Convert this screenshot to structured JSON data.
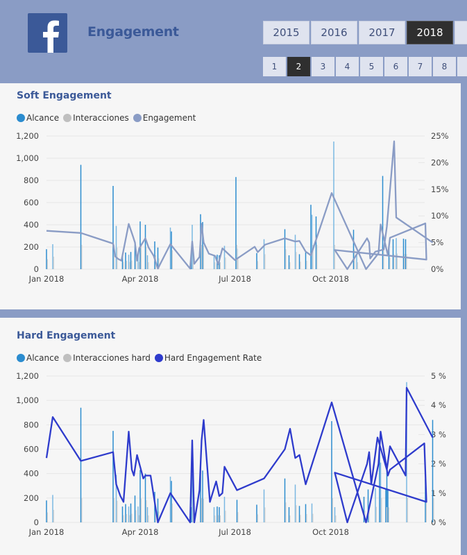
{
  "header": {
    "title": "Engagement",
    "logo_icon": "facebook-icon",
    "years": [
      {
        "label": "2015",
        "active": false
      },
      {
        "label": "2016",
        "active": false
      },
      {
        "label": "2017",
        "active": false
      },
      {
        "label": "2018",
        "active": true
      }
    ],
    "pages": [
      {
        "label": "1",
        "active": false
      },
      {
        "label": "2",
        "active": true
      },
      {
        "label": "3",
        "active": false
      },
      {
        "label": "4",
        "active": false
      },
      {
        "label": "5",
        "active": false
      },
      {
        "label": "6",
        "active": false
      },
      {
        "label": "7",
        "active": false
      },
      {
        "label": "8",
        "active": false
      }
    ]
  },
  "colors": {
    "alcance": "#2b8ccf",
    "interacciones": "#bfbfbf",
    "engagement": "#8a9cc5",
    "hard_rate": "#2e3bcc",
    "brand": "#3b5998"
  },
  "chart_data": [
    {
      "type": "bar+line",
      "title": "Soft Engagement",
      "legend": [
        "Alcance",
        "Interacciones",
        "Engagement"
      ],
      "legend_position": "top-left",
      "x_ticks": [
        "Jan 2018",
        "Apr 2018",
        "Jul 2018",
        "Oct 2018"
      ],
      "y_ticks": [
        "0",
        "200",
        "400",
        "600",
        "800",
        "1,000",
        "1,200"
      ],
      "y2_ticks": [
        "0%",
        "5%",
        "10%",
        "15%",
        "20%",
        "25%"
      ],
      "ylim": [
        0,
        1200
      ],
      "y2lim": [
        0,
        25
      ],
      "bars": [
        {
          "day": 1,
          "v": 180
        },
        {
          "day": 7,
          "v": 225
        },
        {
          "day": 34,
          "v": 940
        },
        {
          "day": 65,
          "v": 750
        },
        {
          "day": 68,
          "v": 390
        },
        {
          "day": 74,
          "v": 130
        },
        {
          "day": 77,
          "v": 150
        },
        {
          "day": 80,
          "v": 130
        },
        {
          "day": 82,
          "v": 155
        },
        {
          "day": 86,
          "v": 220
        },
        {
          "day": 89,
          "v": 130
        },
        {
          "day": 91,
          "v": 430
        },
        {
          "day": 96,
          "v": 400
        },
        {
          "day": 98,
          "v": 125
        },
        {
          "day": 105,
          "v": 250
        },
        {
          "day": 108,
          "v": 195
        },
        {
          "day": 120,
          "v": 375
        },
        {
          "day": 121,
          "v": 340
        },
        {
          "day": 140,
          "v": 125
        },
        {
          "day": 141,
          "v": 400
        },
        {
          "day": 149,
          "v": 495
        },
        {
          "day": 151,
          "v": 425
        },
        {
          "day": 162,
          "v": 125
        },
        {
          "day": 165,
          "v": 130
        },
        {
          "day": 167,
          "v": 125
        },
        {
          "day": 172,
          "v": 210
        },
        {
          "day": 184,
          "v": 185
        },
        {
          "day": 203,
          "v": 145
        },
        {
          "day": 210,
          "v": 270
        },
        {
          "day": 230,
          "v": 360
        },
        {
          "day": 234,
          "v": 125
        },
        {
          "day": 240,
          "v": 310
        },
        {
          "day": 244,
          "v": 135
        },
        {
          "day": 250,
          "v": 150
        },
        {
          "day": 256,
          "v": 155
        },
        {
          "day": 183,
          "v": 830
        },
        {
          "day": 255,
          "v": 580
        },
        {
          "day": 256,
          "v": 490
        },
        {
          "day": 260,
          "v": 475
        },
        {
          "day": 296,
          "v": 355
        },
        {
          "day": 299,
          "v": 125
        },
        {
          "day": 330,
          "v": 210
        },
        {
          "day": 334,
          "v": 270
        },
        {
          "day": 337,
          "v": 280
        },
        {
          "day": 344,
          "v": 275
        },
        {
          "day": 346,
          "v": 270
        },
        {
          "day": 367,
          "v": 1150
        },
        {
          "day": 414,
          "v": 840
        }
      ],
      "engagement_line": [
        {
          "day": 1,
          "v": 7.2
        },
        {
          "day": 34,
          "v": 6.8
        },
        {
          "day": 65,
          "v": 4.8
        },
        {
          "day": 67,
          "v": 2.4
        },
        {
          "day": 70,
          "v": 1.9
        },
        {
          "day": 73,
          "v": 1.6
        },
        {
          "day": 80,
          "v": 8.5
        },
        {
          "day": 84,
          "v": 6.2
        },
        {
          "day": 86,
          "v": 5.0
        },
        {
          "day": 88,
          "v": 1.6
        },
        {
          "day": 90,
          "v": 3.9
        },
        {
          "day": 96,
          "v": 5.8
        },
        {
          "day": 99,
          "v": 4.1
        },
        {
          "day": 104,
          "v": 2.5
        },
        {
          "day": 108,
          "v": 0.1
        },
        {
          "day": 120,
          "v": 4.7
        },
        {
          "day": 139,
          "v": 0.1
        },
        {
          "day": 141,
          "v": 5.2
        },
        {
          "day": 143,
          "v": 1.0
        },
        {
          "day": 148,
          "v": 2.3
        },
        {
          "day": 150,
          "v": 8.5
        },
        {
          "day": 152,
          "v": 5.0
        },
        {
          "day": 157,
          "v": 2.9
        },
        {
          "day": 163,
          "v": 2.5
        },
        {
          "day": 166,
          "v": 0.9
        },
        {
          "day": 170,
          "v": 3.9
        },
        {
          "day": 182,
          "v": 1.7
        },
        {
          "day": 201,
          "v": 4.2
        },
        {
          "day": 204,
          "v": 3.2
        },
        {
          "day": 211,
          "v": 4.6
        },
        {
          "day": 230,
          "v": 5.8
        },
        {
          "day": 240,
          "v": 5.2
        },
        {
          "day": 244,
          "v": 5.3
        },
        {
          "day": 250,
          "v": 3.3
        },
        {
          "day": 255,
          "v": 2.6
        },
        {
          "day": 275,
          "v": 14.3
        },
        {
          "day": 308,
          "v": 0.0
        },
        {
          "day": 320,
          "v": 3.0
        },
        {
          "day": 322,
          "v": 8.4
        },
        {
          "day": 329,
          "v": 2.6
        },
        {
          "day": 331,
          "v": 5.9
        },
        {
          "day": 365,
          "v": 8.6
        },
        {
          "day": 366,
          "v": 1.8
        },
        {
          "day": 368,
          "v": 3.6
        },
        {
          "day": 380,
          "v": 0.0
        },
        {
          "day": 399,
          "v": 5.8
        },
        {
          "day": 401,
          "v": 5.0
        },
        {
          "day": 402,
          "v": 2.0
        },
        {
          "day": 407,
          "v": 3.3
        },
        {
          "day": 415,
          "v": 3.7
        },
        {
          "day": 418,
          "v": 8.0
        },
        {
          "day": 425,
          "v": 24.0
        },
        {
          "day": 427,
          "v": 9.7
        },
        {
          "day": 462,
          "v": 5.0
        }
      ]
    },
    {
      "type": "bar+line",
      "title": "Hard Engagement",
      "legend": [
        "Alcance",
        "Interacciones hard",
        "Hard Engagement Rate"
      ],
      "legend_position": "top-left",
      "x_ticks": [
        "Jan 2018",
        "Apr 2018",
        "Jul 2018",
        "Oct 2018"
      ],
      "y_ticks": [
        "0",
        "200",
        "400",
        "600",
        "800",
        "1,000",
        "1,200"
      ],
      "y2_ticks": [
        "0 %",
        "1 %",
        "2 %",
        "3 %",
        "4 %",
        "5 %"
      ],
      "ylim": [
        0,
        1200
      ],
      "y2lim": [
        0,
        5
      ],
      "hard_rate_line": [
        {
          "day": 1,
          "v": 2.2
        },
        {
          "day": 7,
          "v": 3.6
        },
        {
          "day": 34,
          "v": 2.1
        },
        {
          "day": 65,
          "v": 2.4
        },
        {
          "day": 68,
          "v": 1.3
        },
        {
          "day": 72,
          "v": 0.9
        },
        {
          "day": 75,
          "v": 0.7
        },
        {
          "day": 80,
          "v": 3.1
        },
        {
          "day": 83,
          "v": 1.8
        },
        {
          "day": 85,
          "v": 1.6
        },
        {
          "day": 88,
          "v": 2.3
        },
        {
          "day": 94,
          "v": 1.5
        },
        {
          "day": 96,
          "v": 1.6
        },
        {
          "day": 101,
          "v": 1.6
        },
        {
          "day": 108,
          "v": 0.0
        },
        {
          "day": 120,
          "v": 1.0
        },
        {
          "day": 139,
          "v": 0.0
        },
        {
          "day": 141,
          "v": 2.8
        },
        {
          "day": 143,
          "v": 0.0
        },
        {
          "day": 148,
          "v": 1.1
        },
        {
          "day": 150,
          "v": 2.8
        },
        {
          "day": 152,
          "v": 3.5
        },
        {
          "day": 158,
          "v": 0.7
        },
        {
          "day": 164,
          "v": 1.4
        },
        {
          "day": 167,
          "v": 0.9
        },
        {
          "day": 170,
          "v": 1.0
        },
        {
          "day": 172,
          "v": 1.9
        },
        {
          "day": 184,
          "v": 1.1
        },
        {
          "day": 210,
          "v": 1.5
        },
        {
          "day": 230,
          "v": 2.5
        },
        {
          "day": 235,
          "v": 3.2
        },
        {
          "day": 240,
          "v": 2.2
        },
        {
          "day": 244,
          "v": 2.3
        },
        {
          "day": 250,
          "v": 1.3
        },
        {
          "day": 275,
          "v": 4.1
        },
        {
          "day": 308,
          "v": 0.0
        },
        {
          "day": 320,
          "v": 2.0
        },
        {
          "day": 322,
          "v": 3.1
        },
        {
          "day": 329,
          "v": 1.6
        },
        {
          "day": 331,
          "v": 1.8
        },
        {
          "day": 364,
          "v": 2.7
        },
        {
          "day": 366,
          "v": 0.7
        },
        {
          "day": 368,
          "v": 1.7
        },
        {
          "day": 380,
          "v": 0.0
        },
        {
          "day": 399,
          "v": 2.0
        },
        {
          "day": 401,
          "v": 2.4
        },
        {
          "day": 403,
          "v": 1.3
        },
        {
          "day": 409,
          "v": 2.9
        },
        {
          "day": 418,
          "v": 1.8
        },
        {
          "day": 421,
          "v": 2.6
        },
        {
          "day": 436,
          "v": 1.6
        },
        {
          "day": 437,
          "v": 4.6
        },
        {
          "day": 462,
          "v": 2.9
        }
      ],
      "bars": [
        {
          "day": 1,
          "v": 180
        },
        {
          "day": 7,
          "v": 225
        },
        {
          "day": 34,
          "v": 940
        },
        {
          "day": 65,
          "v": 750
        },
        {
          "day": 68,
          "v": 390
        },
        {
          "day": 74,
          "v": 130
        },
        {
          "day": 77,
          "v": 150
        },
        {
          "day": 80,
          "v": 130
        },
        {
          "day": 82,
          "v": 155
        },
        {
          "day": 86,
          "v": 220
        },
        {
          "day": 89,
          "v": 130
        },
        {
          "day": 91,
          "v": 430
        },
        {
          "day": 96,
          "v": 400
        },
        {
          "day": 98,
          "v": 125
        },
        {
          "day": 105,
          "v": 250
        },
        {
          "day": 108,
          "v": 195
        },
        {
          "day": 120,
          "v": 375
        },
        {
          "day": 121,
          "v": 340
        },
        {
          "day": 140,
          "v": 125
        },
        {
          "day": 141,
          "v": 400
        },
        {
          "day": 149,
          "v": 495
        },
        {
          "day": 151,
          "v": 425
        },
        {
          "day": 162,
          "v": 125
        },
        {
          "day": 165,
          "v": 130
        },
        {
          "day": 167,
          "v": 125
        },
        {
          "day": 172,
          "v": 210
        },
        {
          "day": 184,
          "v": 185
        },
        {
          "day": 203,
          "v": 145
        },
        {
          "day": 210,
          "v": 270
        },
        {
          "day": 230,
          "v": 360
        },
        {
          "day": 234,
          "v": 125
        },
        {
          "day": 240,
          "v": 310
        },
        {
          "day": 244,
          "v": 135
        },
        {
          "day": 250,
          "v": 150
        },
        {
          "day": 256,
          "v": 155
        },
        {
          "day": 275,
          "v": 830
        },
        {
          "day": 321,
          "v": 580
        },
        {
          "day": 322,
          "v": 490
        },
        {
          "day": 328,
          "v": 475
        },
        {
          "day": 365,
          "v": 355
        },
        {
          "day": 368,
          "v": 125
        },
        {
          "day": 396,
          "v": 210
        },
        {
          "day": 400,
          "v": 270
        },
        {
          "day": 407,
          "v": 280
        },
        {
          "day": 417,
          "v": 275
        },
        {
          "day": 419,
          "v": 270
        },
        {
          "day": 437,
          "v": 1150
        },
        {
          "day": 462,
          "v": 840
        }
      ]
    }
  ]
}
